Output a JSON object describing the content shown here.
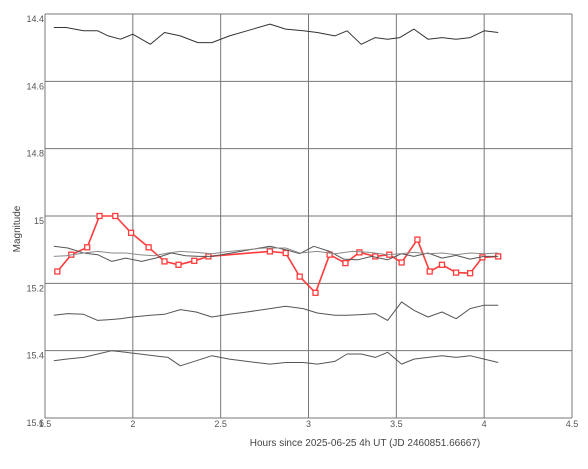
{
  "chart_data": {
    "type": "line",
    "xlabel": "Hours since 2025-06-25 4h UT (JD 2460851.66667)",
    "ylabel": "Magnitude",
    "xlim": [
      1.5,
      4.5
    ],
    "ylim": [
      15.6,
      14.4
    ],
    "y_inverted": true,
    "grid": true,
    "x_ticks": [
      "1.5",
      "2",
      "2.5",
      "3",
      "3.5",
      "4",
      "4.5"
    ],
    "y_ticks": [
      "14.4",
      "14.6",
      "14.8",
      "15",
      "15.2",
      "15.4",
      "15.6"
    ],
    "colors": {
      "target": "#ff3b3b",
      "comparison": "#555555",
      "gray": "#8a8a8a",
      "grid": "#777777"
    },
    "series": [
      {
        "role": "comparison-top",
        "color": "#333333",
        "marker": "none",
        "x": [
          1.55,
          1.62,
          1.72,
          1.8,
          1.86,
          1.93,
          2.0,
          2.1,
          2.18,
          2.27,
          2.37,
          2.45,
          2.55,
          2.65,
          2.78,
          2.87,
          2.97,
          3.05,
          3.15,
          3.22,
          3.3,
          3.38,
          3.45,
          3.52,
          3.6,
          3.68,
          3.76,
          3.84,
          3.92,
          4.0,
          4.08
        ],
        "y": [
          14.44,
          14.44,
          14.45,
          14.45,
          14.465,
          14.475,
          14.46,
          14.49,
          14.455,
          14.465,
          14.485,
          14.485,
          14.465,
          14.45,
          14.43,
          14.445,
          14.45,
          14.455,
          14.465,
          14.45,
          14.49,
          14.47,
          14.475,
          14.47,
          14.445,
          14.475,
          14.47,
          14.475,
          14.47,
          14.45,
          14.455
        ]
      },
      {
        "role": "target",
        "color": "#ff3b3b",
        "marker": "square",
        "x": [
          1.57,
          1.65,
          1.74,
          1.81,
          1.9,
          1.99,
          2.09,
          2.18,
          2.26,
          2.35,
          2.43,
          2.78,
          2.87,
          2.95,
          3.04,
          3.12,
          3.21,
          3.29,
          3.38,
          3.46,
          3.53,
          3.62,
          3.69,
          3.76,
          3.84,
          3.92,
          3.99,
          4.08
        ],
        "y": [
          15.165,
          15.115,
          15.093,
          15.0,
          15.0,
          15.05,
          15.093,
          15.135,
          15.145,
          15.133,
          15.12,
          15.105,
          15.11,
          15.18,
          15.228,
          15.115,
          15.14,
          15.108,
          15.12,
          15.115,
          15.138,
          15.07,
          15.165,
          15.145,
          15.168,
          15.17,
          15.123,
          15.12
        ]
      },
      {
        "role": "comparison-mid",
        "color": "#555555",
        "marker": "none",
        "x": [
          1.55,
          1.63,
          1.72,
          1.8,
          1.88,
          1.96,
          2.05,
          2.13,
          2.22,
          2.3,
          2.38,
          2.45,
          2.78,
          2.87,
          2.95,
          3.03,
          3.12,
          3.2,
          3.28,
          3.36,
          3.45,
          3.53,
          3.6,
          3.68,
          3.76,
          3.84,
          3.92,
          4.0,
          4.08
        ],
        "y": [
          15.09,
          15.095,
          15.11,
          15.115,
          15.135,
          15.125,
          15.135,
          15.125,
          15.11,
          15.118,
          15.12,
          15.12,
          15.09,
          15.1,
          15.112,
          15.09,
          15.105,
          15.128,
          15.13,
          15.12,
          15.13,
          15.112,
          15.12,
          15.11,
          15.125,
          15.117,
          15.128,
          15.12,
          15.12
        ]
      },
      {
        "role": "comparison-gray",
        "color": "#8a8a8a",
        "marker": "none",
        "x": [
          1.55,
          1.62,
          1.72,
          1.8,
          1.88,
          1.96,
          2.04,
          2.12,
          2.2,
          2.27,
          2.36,
          2.45,
          2.55,
          2.65,
          2.75,
          2.87,
          2.95,
          3.05,
          3.15,
          3.25,
          3.35,
          3.45,
          3.52,
          3.6,
          3.68,
          3.76,
          3.84,
          3.92,
          4.0,
          4.08
        ],
        "y": [
          15.12,
          15.118,
          15.11,
          15.105,
          15.11,
          15.11,
          15.115,
          15.118,
          15.11,
          15.105,
          15.108,
          15.112,
          15.105,
          15.1,
          15.095,
          15.095,
          15.11,
          15.105,
          15.112,
          15.105,
          15.108,
          15.115,
          15.112,
          15.108,
          15.112,
          15.11,
          15.115,
          15.11,
          15.112,
          15.11
        ]
      },
      {
        "role": "comparison-low",
        "color": "#555555",
        "marker": "none",
        "x": [
          1.55,
          1.63,
          1.72,
          1.8,
          1.86,
          1.93,
          2.0,
          2.1,
          2.18,
          2.27,
          2.36,
          2.45,
          2.55,
          2.65,
          2.78,
          2.87,
          2.97,
          3.05,
          3.15,
          3.22,
          3.3,
          3.38,
          3.45,
          3.53,
          3.6,
          3.68,
          3.76,
          3.84,
          3.92,
          4.0,
          4.08
        ],
        "y": [
          15.295,
          15.29,
          15.292,
          15.31,
          15.308,
          15.305,
          15.3,
          15.295,
          15.292,
          15.278,
          15.285,
          15.3,
          15.292,
          15.285,
          15.275,
          15.268,
          15.275,
          15.288,
          15.295,
          15.295,
          15.293,
          15.29,
          15.31,
          15.255,
          15.28,
          15.3,
          15.285,
          15.305,
          15.275,
          15.265,
          15.265
        ]
      },
      {
        "role": "comparison-bottom",
        "color": "#555555",
        "marker": "none",
        "x": [
          1.55,
          1.62,
          1.72,
          1.8,
          1.88,
          1.96,
          2.04,
          2.12,
          2.2,
          2.27,
          2.36,
          2.45,
          2.55,
          2.65,
          2.78,
          2.87,
          2.97,
          3.05,
          3.15,
          3.22,
          3.3,
          3.38,
          3.45,
          3.53,
          3.6,
          3.68,
          3.76,
          3.84,
          3.92,
          4.0,
          4.08
        ],
        "y": [
          15.43,
          15.425,
          15.42,
          15.41,
          15.4,
          15.405,
          15.41,
          15.415,
          15.42,
          15.445,
          15.43,
          15.415,
          15.425,
          15.432,
          15.44,
          15.435,
          15.435,
          15.44,
          15.432,
          15.41,
          15.41,
          15.42,
          15.405,
          15.44,
          15.425,
          15.42,
          15.415,
          15.42,
          15.415,
          15.425,
          15.435
        ]
      }
    ]
  }
}
